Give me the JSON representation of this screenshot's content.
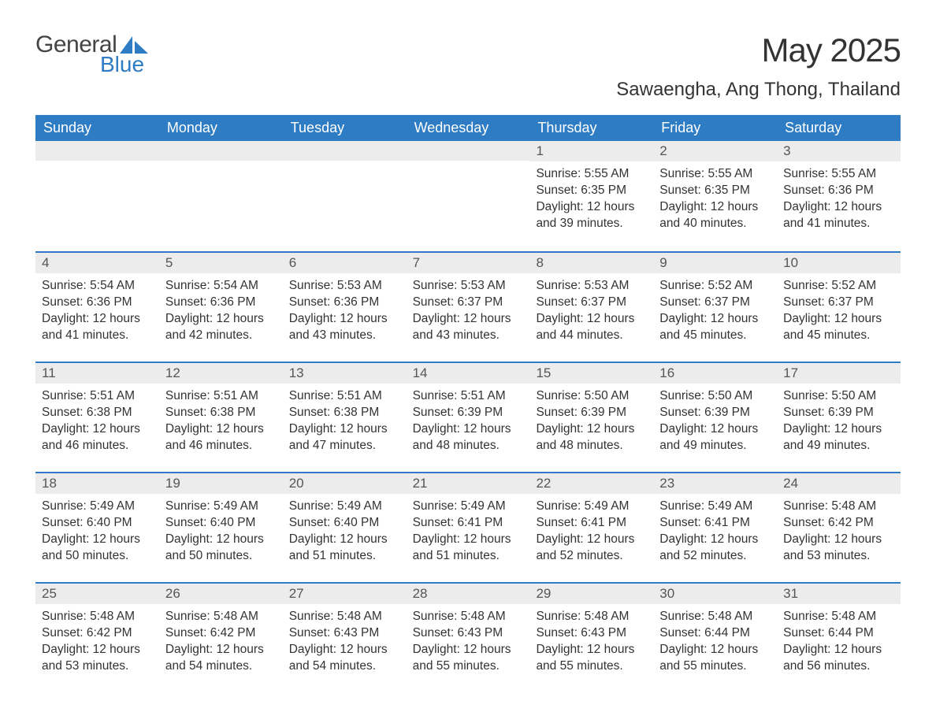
{
  "logo": {
    "text_general": "General",
    "text_blue": "Blue"
  },
  "title": "May 2025",
  "location": "Sawaengha, Ang Thong, Thailand",
  "colors": {
    "header_bg": "#2e7cc4",
    "header_text": "#ffffff",
    "day_bar_bg": "#ececec",
    "day_bar_border": "#2e7cc4",
    "body_bg": "#ffffff",
    "text": "#333333",
    "logo_blue": "#2e7cc4"
  },
  "weekdays": [
    "Sunday",
    "Monday",
    "Tuesday",
    "Wednesday",
    "Thursday",
    "Friday",
    "Saturday"
  ],
  "weeks": [
    [
      null,
      null,
      null,
      null,
      {
        "n": "1",
        "sunrise": "Sunrise: 5:55 AM",
        "sunset": "Sunset: 6:35 PM",
        "daylight": "Daylight: 12 hours and 39 minutes."
      },
      {
        "n": "2",
        "sunrise": "Sunrise: 5:55 AM",
        "sunset": "Sunset: 6:35 PM",
        "daylight": "Daylight: 12 hours and 40 minutes."
      },
      {
        "n": "3",
        "sunrise": "Sunrise: 5:55 AM",
        "sunset": "Sunset: 6:36 PM",
        "daylight": "Daylight: 12 hours and 41 minutes."
      }
    ],
    [
      {
        "n": "4",
        "sunrise": "Sunrise: 5:54 AM",
        "sunset": "Sunset: 6:36 PM",
        "daylight": "Daylight: 12 hours and 41 minutes."
      },
      {
        "n": "5",
        "sunrise": "Sunrise: 5:54 AM",
        "sunset": "Sunset: 6:36 PM",
        "daylight": "Daylight: 12 hours and 42 minutes."
      },
      {
        "n": "6",
        "sunrise": "Sunrise: 5:53 AM",
        "sunset": "Sunset: 6:36 PM",
        "daylight": "Daylight: 12 hours and 43 minutes."
      },
      {
        "n": "7",
        "sunrise": "Sunrise: 5:53 AM",
        "sunset": "Sunset: 6:37 PM",
        "daylight": "Daylight: 12 hours and 43 minutes."
      },
      {
        "n": "8",
        "sunrise": "Sunrise: 5:53 AM",
        "sunset": "Sunset: 6:37 PM",
        "daylight": "Daylight: 12 hours and 44 minutes."
      },
      {
        "n": "9",
        "sunrise": "Sunrise: 5:52 AM",
        "sunset": "Sunset: 6:37 PM",
        "daylight": "Daylight: 12 hours and 45 minutes."
      },
      {
        "n": "10",
        "sunrise": "Sunrise: 5:52 AM",
        "sunset": "Sunset: 6:37 PM",
        "daylight": "Daylight: 12 hours and 45 minutes."
      }
    ],
    [
      {
        "n": "11",
        "sunrise": "Sunrise: 5:51 AM",
        "sunset": "Sunset: 6:38 PM",
        "daylight": "Daylight: 12 hours and 46 minutes."
      },
      {
        "n": "12",
        "sunrise": "Sunrise: 5:51 AM",
        "sunset": "Sunset: 6:38 PM",
        "daylight": "Daylight: 12 hours and 46 minutes."
      },
      {
        "n": "13",
        "sunrise": "Sunrise: 5:51 AM",
        "sunset": "Sunset: 6:38 PM",
        "daylight": "Daylight: 12 hours and 47 minutes."
      },
      {
        "n": "14",
        "sunrise": "Sunrise: 5:51 AM",
        "sunset": "Sunset: 6:39 PM",
        "daylight": "Daylight: 12 hours and 48 minutes."
      },
      {
        "n": "15",
        "sunrise": "Sunrise: 5:50 AM",
        "sunset": "Sunset: 6:39 PM",
        "daylight": "Daylight: 12 hours and 48 minutes."
      },
      {
        "n": "16",
        "sunrise": "Sunrise: 5:50 AM",
        "sunset": "Sunset: 6:39 PM",
        "daylight": "Daylight: 12 hours and 49 minutes."
      },
      {
        "n": "17",
        "sunrise": "Sunrise: 5:50 AM",
        "sunset": "Sunset: 6:39 PM",
        "daylight": "Daylight: 12 hours and 49 minutes."
      }
    ],
    [
      {
        "n": "18",
        "sunrise": "Sunrise: 5:49 AM",
        "sunset": "Sunset: 6:40 PM",
        "daylight": "Daylight: 12 hours and 50 minutes."
      },
      {
        "n": "19",
        "sunrise": "Sunrise: 5:49 AM",
        "sunset": "Sunset: 6:40 PM",
        "daylight": "Daylight: 12 hours and 50 minutes."
      },
      {
        "n": "20",
        "sunrise": "Sunrise: 5:49 AM",
        "sunset": "Sunset: 6:40 PM",
        "daylight": "Daylight: 12 hours and 51 minutes."
      },
      {
        "n": "21",
        "sunrise": "Sunrise: 5:49 AM",
        "sunset": "Sunset: 6:41 PM",
        "daylight": "Daylight: 12 hours and 51 minutes."
      },
      {
        "n": "22",
        "sunrise": "Sunrise: 5:49 AM",
        "sunset": "Sunset: 6:41 PM",
        "daylight": "Daylight: 12 hours and 52 minutes."
      },
      {
        "n": "23",
        "sunrise": "Sunrise: 5:49 AM",
        "sunset": "Sunset: 6:41 PM",
        "daylight": "Daylight: 12 hours and 52 minutes."
      },
      {
        "n": "24",
        "sunrise": "Sunrise: 5:48 AM",
        "sunset": "Sunset: 6:42 PM",
        "daylight": "Daylight: 12 hours and 53 minutes."
      }
    ],
    [
      {
        "n": "25",
        "sunrise": "Sunrise: 5:48 AM",
        "sunset": "Sunset: 6:42 PM",
        "daylight": "Daylight: 12 hours and 53 minutes."
      },
      {
        "n": "26",
        "sunrise": "Sunrise: 5:48 AM",
        "sunset": "Sunset: 6:42 PM",
        "daylight": "Daylight: 12 hours and 54 minutes."
      },
      {
        "n": "27",
        "sunrise": "Sunrise: 5:48 AM",
        "sunset": "Sunset: 6:43 PM",
        "daylight": "Daylight: 12 hours and 54 minutes."
      },
      {
        "n": "28",
        "sunrise": "Sunrise: 5:48 AM",
        "sunset": "Sunset: 6:43 PM",
        "daylight": "Daylight: 12 hours and 55 minutes."
      },
      {
        "n": "29",
        "sunrise": "Sunrise: 5:48 AM",
        "sunset": "Sunset: 6:43 PM",
        "daylight": "Daylight: 12 hours and 55 minutes."
      },
      {
        "n": "30",
        "sunrise": "Sunrise: 5:48 AM",
        "sunset": "Sunset: 6:44 PM",
        "daylight": "Daylight: 12 hours and 55 minutes."
      },
      {
        "n": "31",
        "sunrise": "Sunrise: 5:48 AM",
        "sunset": "Sunset: 6:44 PM",
        "daylight": "Daylight: 12 hours and 56 minutes."
      }
    ]
  ]
}
